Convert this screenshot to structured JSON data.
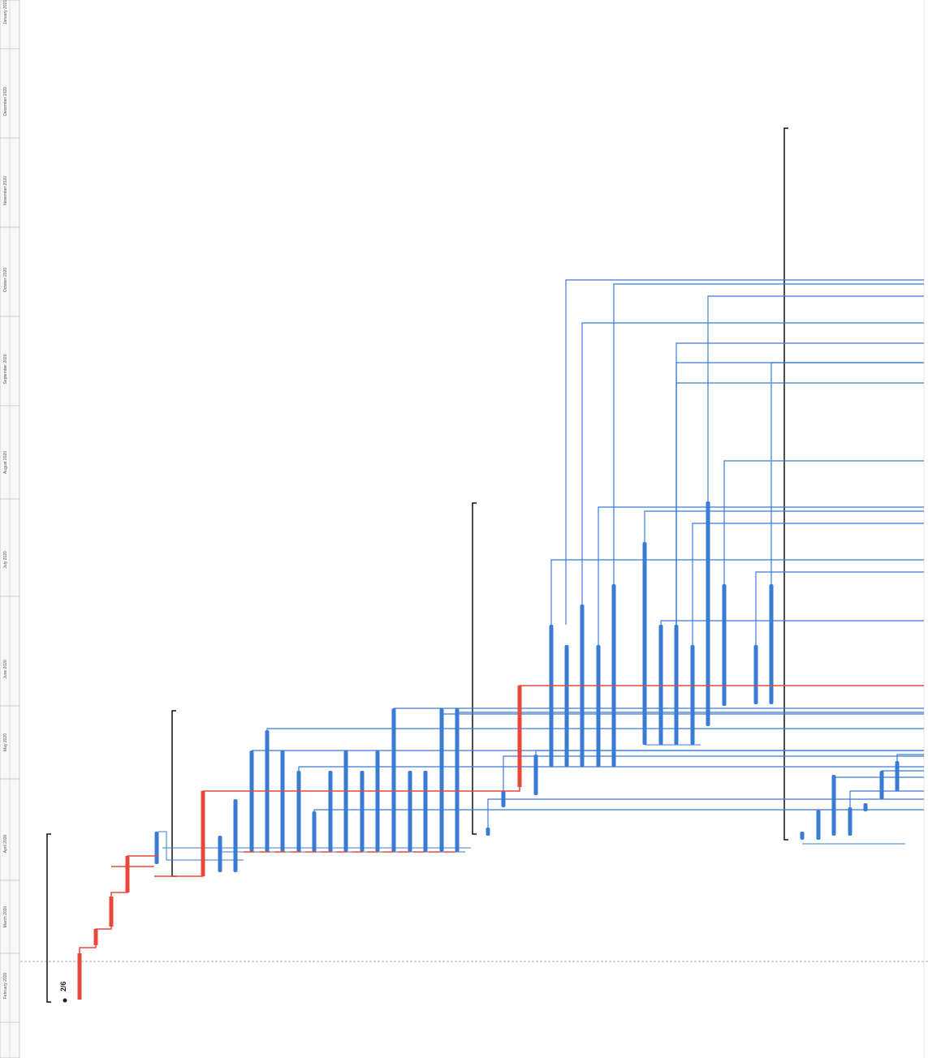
{
  "timeline": {
    "months": [
      "January 2021",
      "December 2020",
      "November 2020",
      "October 2020",
      "September 2020",
      "August 2020",
      "July 2020",
      "June 2020",
      "May 2020",
      "April 2020",
      "March 2020",
      "February 2020"
    ]
  },
  "milestone": {
    "label": "2/6"
  }
}
